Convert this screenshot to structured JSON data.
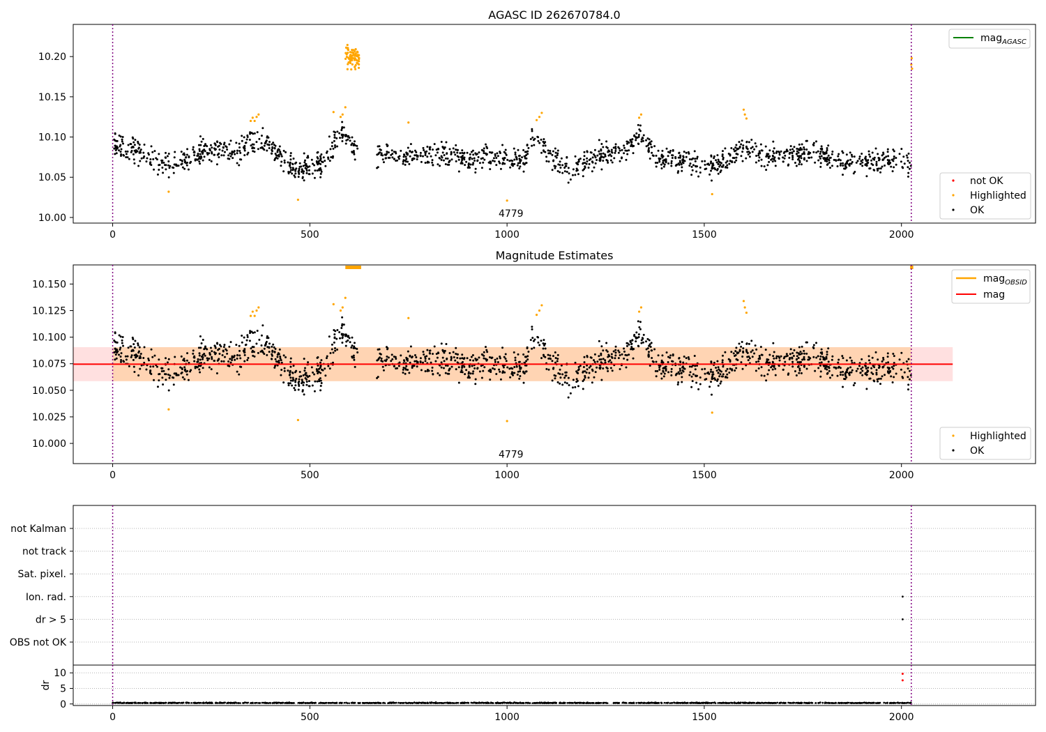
{
  "chart_data": [
    {
      "type": "scatter",
      "title": "AGASC ID 262670784.0",
      "xlim": [
        -100,
        2340
      ],
      "ylim": [
        9.993,
        10.24
      ],
      "x_ticks": [
        "0",
        "500",
        "1000",
        "1500",
        "2000"
      ],
      "x_tick_values": [
        0,
        500,
        1000,
        1500,
        2000
      ],
      "y_ticks": [
        "10.00",
        "10.05",
        "10.10",
        "10.15",
        "10.20"
      ],
      "y_tick_values": [
        10.0,
        10.05,
        10.1,
        10.15,
        10.2
      ],
      "annotation": "4779",
      "annotation_at": [
        1010,
        10.005
      ],
      "vlines_x": [
        0,
        2025
      ],
      "line_legend": {
        "label": "mag",
        "subscript": "AGASC",
        "color": "#008000",
        "placement": "top-right"
      },
      "point_legend": [
        {
          "label": "not OK",
          "color": "#ff0000"
        },
        {
          "label": "Highlighted",
          "color": "#ffa500"
        },
        {
          "label": "OK",
          "color": "#000000"
        }
      ],
      "point_legend_placement": "lower-right",
      "ok_trend": [
        [
          0,
          10.092
        ],
        [
          40,
          10.085
        ],
        [
          100,
          10.072
        ],
        [
          150,
          10.065
        ],
        [
          200,
          10.075
        ],
        [
          250,
          10.085
        ],
        [
          300,
          10.08
        ],
        [
          340,
          10.09
        ],
        [
          380,
          10.098
        ],
        [
          420,
          10.08
        ],
        [
          460,
          10.06
        ],
        [
          500,
          10.063
        ],
        [
          540,
          10.07
        ],
        [
          570,
          10.1
        ],
        [
          590,
          10.105
        ],
        [
          620,
          10.078
        ],
        [
          700,
          10.075
        ],
        [
          800,
          10.08
        ],
        [
          900,
          10.075
        ],
        [
          1000,
          10.072
        ],
        [
          1040,
          10.07
        ],
        [
          1070,
          10.1
        ],
        [
          1100,
          10.085
        ],
        [
          1150,
          10.06
        ],
        [
          1200,
          10.068
        ],
        [
          1260,
          10.08
        ],
        [
          1300,
          10.085
        ],
        [
          1340,
          10.1
        ],
        [
          1380,
          10.075
        ],
        [
          1450,
          10.07
        ],
        [
          1500,
          10.062
        ],
        [
          1550,
          10.068
        ],
        [
          1600,
          10.09
        ],
        [
          1650,
          10.075
        ],
        [
          1700,
          10.078
        ],
        [
          1780,
          10.08
        ],
        [
          1850,
          10.07
        ],
        [
          1950,
          10.07
        ],
        [
          2025,
          10.068
        ]
      ],
      "ok_x_range": [
        0,
        2025
      ],
      "gaps": [
        [
          625,
          670
        ]
      ],
      "ok_spread": 0.0135,
      "highlighted_points": [
        [
          142,
          10.032
        ],
        [
          350,
          10.12
        ],
        [
          355,
          10.124
        ],
        [
          360,
          10.12
        ],
        [
          365,
          10.125
        ],
        [
          370,
          10.128
        ],
        [
          470,
          10.022
        ],
        [
          560,
          10.131
        ],
        [
          578,
          10.125
        ],
        [
          583,
          10.128
        ],
        [
          590,
          10.137
        ],
        [
          750,
          10.118
        ],
        [
          1000,
          10.021
        ],
        [
          1075,
          10.121
        ],
        [
          1082,
          10.125
        ],
        [
          1088,
          10.13
        ],
        [
          1335,
          10.124
        ],
        [
          1340,
          10.128
        ],
        [
          1520,
          10.029
        ],
        [
          1600,
          10.134
        ],
        [
          1603,
          10.128
        ],
        [
          1607,
          10.123
        ],
        [
          2025,
          10.19
        ],
        [
          2027,
          10.185
        ],
        [
          2026,
          10.198
        ]
      ],
      "highlighted_cluster": {
        "x_range": [
          590,
          625
        ],
        "y_center": 10.198,
        "y_spread": 0.012,
        "count": 70
      }
    },
    {
      "type": "scatter",
      "title": "Magnitude Estimates",
      "xlim": [
        -100,
        2340
      ],
      "ylim": [
        9.981,
        10.168
      ],
      "x_ticks": [
        "0",
        "500",
        "1000",
        "1500",
        "2000"
      ],
      "x_tick_values": [
        0,
        500,
        1000,
        1500,
        2000
      ],
      "y_ticks": [
        "10.000",
        "10.025",
        "10.050",
        "10.075",
        "10.100",
        "10.125",
        "10.150"
      ],
      "y_tick_values": [
        10.0,
        10.025,
        10.05,
        10.075,
        10.1,
        10.125,
        10.15
      ],
      "annotation": "4779",
      "annotation_at": [
        1010,
        9.99
      ],
      "vlines_x": [
        0,
        2025
      ],
      "mag": 10.0746,
      "band": [
        10.0586,
        10.0906
      ],
      "band_x_range": [
        -100,
        2130
      ],
      "obsid_band_x_range": [
        0,
        2025
      ],
      "line_legend": [
        {
          "label": "mag",
          "subscript": "OBSID",
          "color": "#ffa500"
        },
        {
          "label": "mag",
          "subscript": "",
          "color": "#ff0000"
        }
      ],
      "line_legend_placement": "top-right",
      "point_legend": [
        {
          "label": "Highlighted",
          "color": "#ffa500"
        },
        {
          "label": "OK",
          "color": "#000000"
        }
      ],
      "point_legend_placement": "lower-right",
      "offscale_segments": [
        [
          590,
          630
        ],
        [
          2022,
          2030
        ]
      ]
    },
    {
      "type": "scatter",
      "title": "",
      "xlim": [
        -100,
        2340
      ],
      "x_ticks": [
        "0",
        "500",
        "1000",
        "1500",
        "2000"
      ],
      "x_tick_values": [
        0,
        500,
        1000,
        1500,
        2000
      ],
      "flag_labels": [
        "not Kalman",
        "not track",
        "Sat. pixel.",
        "Ion. rad.",
        "dr > 5",
        "OBS not OK"
      ],
      "flag_points": [
        {
          "flag": "Ion. rad.",
          "x": 2003
        },
        {
          "flag": "dr > 5",
          "x": 2003
        }
      ],
      "vlines_x": [
        0,
        2025
      ]
    },
    {
      "type": "scatter",
      "title": "",
      "ylabel": "dr",
      "xlim": [
        -100,
        2340
      ],
      "ylim": [
        -0.5,
        12.5
      ],
      "y_ticks": [
        "0",
        "5",
        "10"
      ],
      "y_tick_values": [
        0,
        5,
        10
      ],
      "dr_base": 0.25,
      "dr_spread": 0.18,
      "dr_x_range": [
        0,
        2025
      ],
      "dr_outliers": [
        {
          "x": 2003,
          "y": 9.7,
          "color": "#ff0000"
        },
        {
          "x": 2003,
          "y": 7.6,
          "color": "#ff0000"
        }
      ],
      "vlines_x": [
        0,
        2025
      ]
    }
  ]
}
